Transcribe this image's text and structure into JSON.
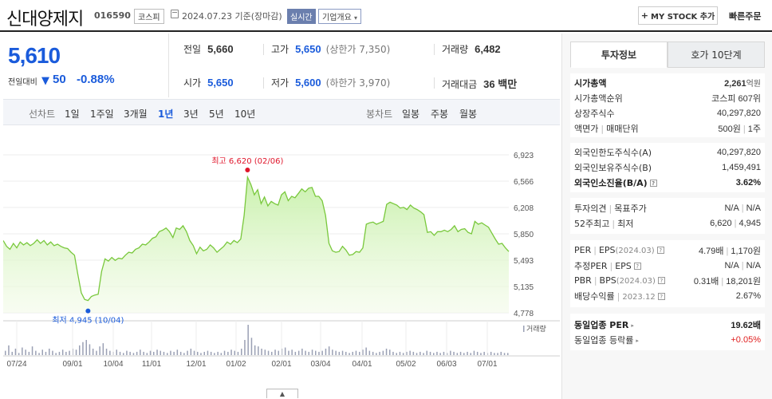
{
  "header": {
    "company_name": "신대양제지",
    "code": "016590",
    "market_badge": "코스피",
    "date_text": "2024.07.23  기준(장마감)",
    "realtime_badge": "실시간",
    "info_badge": "기업개요",
    "mystock_label": "MY STOCK 추가",
    "order_label": "빠른주문"
  },
  "price": {
    "current": "5,610",
    "change_label": "전일대비",
    "change_value": "50",
    "change_pct": "-0.88%"
  },
  "stats": {
    "prev_label": "전일",
    "prev_value": "5,660",
    "high_label": "고가",
    "high_value": "5,650",
    "upper_limit": "(상한가 7,350)",
    "volume_label": "거래량",
    "volume_value": "6,482",
    "open_label": "시가",
    "open_value": "5,650",
    "low_label": "저가",
    "low_value": "5,600",
    "lower_limit": "(하한가 3,970)",
    "amount_label": "거래대금",
    "amount_value": "36 백만"
  },
  "period_bar": {
    "line_label": "선차트",
    "line_tabs": [
      "1일",
      "1주일",
      "3개월",
      "1년",
      "3년",
      "5년",
      "10년"
    ],
    "active_tab": "1년",
    "candle_label": "봉차트",
    "candle_tabs": [
      "일봉",
      "주봉",
      "월봉"
    ]
  },
  "chart_data": {
    "type": "area",
    "y_ticks": [
      "6,923",
      "6,566",
      "6,208",
      "5,850",
      "5,493",
      "5,135",
      "4,778"
    ],
    "ylim": [
      4778,
      6923
    ],
    "x_ticks": [
      "07/24",
      "09/01",
      "10/04",
      "11/01",
      "12/01",
      "01/02",
      "02/01",
      "03/04",
      "04/01",
      "05/02",
      "06/03",
      "07/01"
    ],
    "max_annotation": "최고 6,620 (02/06)",
    "min_annotation": "최저 4,945 (10/04)",
    "volume_label": "거래량",
    "fill_color": "#c6f0a8",
    "line_color": "#79c83c",
    "price_values": [
      5760,
      5680,
      5640,
      5720,
      5660,
      5740,
      5700,
      5730,
      5690,
      5720,
      5770,
      5720,
      5760,
      5700,
      5740,
      5690,
      5710,
      5680,
      5660,
      5650,
      5600,
      5560,
      5300,
      5050,
      4960,
      4945,
      5000,
      5020,
      5030,
      5340,
      5510,
      5480,
      5530,
      5490,
      5520,
      5510,
      5560,
      5600,
      5590,
      5640,
      5660,
      5710,
      5700,
      5740,
      5790,
      5810,
      5880,
      5900,
      5930,
      5880,
      5800,
      5930,
      5910,
      5960,
      5880,
      5760,
      5690,
      5580,
      5670,
      5620,
      5640,
      5700,
      5660,
      5600,
      5640,
      5680,
      5740,
      5710,
      5760,
      5730,
      5780,
      6100,
      6620,
      6520,
      6380,
      6450,
      6260,
      6350,
      6230,
      6290,
      6260,
      6240,
      6380,
      6420,
      6300,
      6360,
      6340,
      6400,
      6460,
      6420,
      6470,
      6480,
      6360,
      6360,
      6300,
      6100,
      5720,
      5620,
      5600,
      5610,
      5680,
      5630,
      5560,
      5570,
      5610,
      5600,
      5660,
      5980,
      6000,
      6010,
      5980,
      6000,
      6020,
      6250,
      6280,
      6260,
      6240,
      6200,
      6210,
      6180,
      6240,
      6200,
      6180,
      6150,
      6110,
      5870,
      5880,
      5830,
      5880,
      5880,
      5900,
      5880,
      5910,
      5960,
      5880,
      5910,
      5920,
      5870,
      5850,
      6020,
      5980,
      6000,
      5970,
      5940,
      5860,
      5780,
      5710,
      5720,
      5660,
      5610
    ],
    "volume_values": [
      4,
      9,
      3,
      6,
      2,
      7,
      5,
      3,
      8,
      4,
      2,
      5,
      3,
      6,
      4,
      2,
      3,
      5,
      3,
      4,
      6,
      5,
      9,
      12,
      14,
      10,
      6,
      4,
      8,
      11,
      6,
      4,
      3,
      5,
      3,
      2,
      4,
      3,
      2,
      3,
      5,
      3,
      2,
      4,
      3,
      5,
      4,
      3,
      2,
      4,
      3,
      5,
      3,
      2,
      4,
      6,
      4,
      3,
      2,
      3,
      4,
      3,
      2,
      3,
      2,
      4,
      3,
      5,
      4,
      3,
      6,
      14,
      28,
      16,
      9,
      8,
      6,
      5,
      4,
      3,
      5,
      4,
      6,
      7,
      4,
      5,
      3,
      4,
      6,
      4,
      3,
      5,
      4,
      3,
      4,
      6,
      8,
      5,
      4,
      3,
      4,
      3,
      2,
      3,
      4,
      3,
      5,
      7,
      4,
      3,
      2,
      3,
      4,
      6,
      5,
      3,
      2,
      3,
      2,
      3,
      4,
      3,
      2,
      3,
      2,
      4,
      3,
      2,
      3,
      2,
      3,
      2,
      4,
      3,
      2,
      3,
      2,
      3,
      2,
      4,
      3,
      2,
      3,
      2,
      3,
      2,
      2,
      3,
      2,
      2
    ]
  },
  "right_panel": {
    "tab_invest": "투자정보",
    "tab_quote": "호가 10단계",
    "g1": {
      "market_cap_label": "시가총액",
      "market_cap_value": "2,261",
      "market_cap_unit": "억원",
      "cap_rank_label": "시가총액순위",
      "cap_rank_value": "코스피 607위",
      "shares_label": "상장주식수",
      "shares_value": "40,297,820",
      "par_label": "액면가",
      "unit_label": "매매단위",
      "par_value": "500원",
      "unit_value": "1주"
    },
    "g2": {
      "foreign_limit_label": "외국인한도주식수(A)",
      "foreign_limit_value": "40,297,820",
      "foreign_hold_label": "외국인보유주식수(B)",
      "foreign_hold_value": "1,459,491",
      "foreign_rate_label": "외국인소진율(B/A)",
      "foreign_rate_value": "3.62%"
    },
    "g3": {
      "opinion_label": "투자의견",
      "target_label": "목표주가",
      "opinion_value": "N/A",
      "target_value": "N/A",
      "week52_label": "52주최고",
      "week52_low_label": "최저",
      "week52_high": "6,620",
      "week52_low": "4,945"
    },
    "g4": {
      "per_label": "PER",
      "eps_label": "EPS",
      "per_period": "(2024.03)",
      "per_value": "4.79배",
      "eps_value": "1,170원",
      "est_per_label": "추정PER",
      "est_eps_label": "EPS",
      "est_per_value": "N/A",
      "est_eps_value": "N/A",
      "pbr_label": "PBR",
      "bps_label": "BPS",
      "pbr_period": "(2024.03)",
      "pbr_value": "0.31배",
      "bps_value": "18,201원",
      "div_label": "배당수익률",
      "div_period": "2023.12",
      "div_value": "2.67%"
    },
    "g5": {
      "industry_per_label": "동일업종 PER",
      "industry_per_value": "19.62배",
      "industry_rate_label": "동일업종 등락률",
      "industry_rate_value": "+0.05%"
    }
  }
}
